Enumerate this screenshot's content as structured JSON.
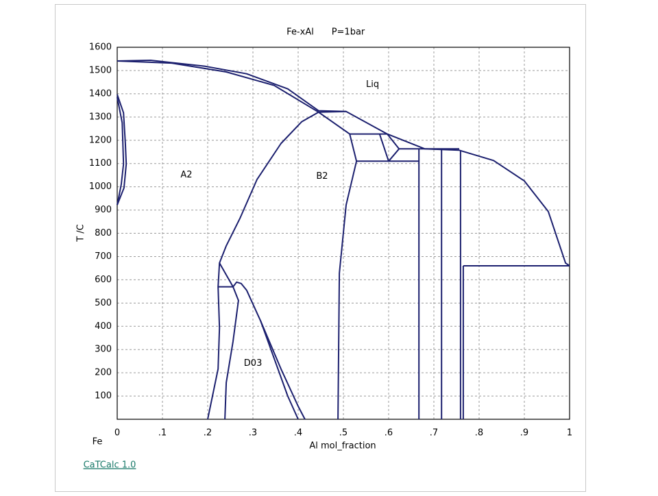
{
  "chart_data": {
    "type": "line",
    "title": "Fe-xAl",
    "subtitle": "P=1bar",
    "x_label": "Al mol_fraction",
    "y_label": "T /C",
    "origin_label": "Fe",
    "annotations": [
      {
        "text": "Liq",
        "x": 0.55,
        "y": 1440
      },
      {
        "text": "A2",
        "x": 0.14,
        "y": 1050
      },
      {
        "text": "B2",
        "x": 0.44,
        "y": 1045
      },
      {
        "text": "D03",
        "x": 0.28,
        "y": 240
      }
    ],
    "footer_link": "CaTCalc 1.0",
    "xlim": [
      0,
      1
    ],
    "ylim": [
      0,
      1600
    ],
    "xticks": [
      0,
      {
        "value": 0.1,
        "label": ".1"
      },
      {
        "value": 0.2,
        "label": ".2"
      },
      {
        "value": 0.3,
        "label": ".3"
      },
      {
        "value": 0.4,
        "label": ".4"
      },
      {
        "value": 0.5,
        "label": ".5"
      },
      {
        "value": 0.6,
        "label": ".6"
      },
      {
        "value": 0.7,
        "label": ".7"
      },
      {
        "value": 0.8,
        "label": ".8"
      },
      {
        "value": 0.9,
        "label": ".9"
      },
      1
    ],
    "yticks": [
      100,
      200,
      300,
      400,
      500,
      600,
      700,
      800,
      900,
      1000,
      1100,
      1200,
      1300,
      1400,
      1500,
      1600
    ],
    "grid": true,
    "color": "#1b1f6e",
    "series": [
      {
        "x": [
          0,
          0.074,
          0.195,
          0.286,
          0.377,
          0.445,
          0.506,
          0.597,
          0.68,
          0.756,
          0.832,
          0.9,
          0.953,
          0.991,
          1
        ],
        "y": [
          1541,
          1544,
          1518,
          1486,
          1421,
          1327,
          1324,
          1227,
          1163,
          1157,
          1113,
          1025,
          893,
          672,
          660
        ]
      },
      {
        "x": [
          0,
          0.12,
          0.241,
          0.347,
          0.445,
          0.506
        ],
        "y": [
          1541,
          1532,
          1494,
          1436,
          1321,
          1324
        ]
      },
      {
        "x": [
          0.445,
          0.408,
          0.362,
          0.309,
          0.271,
          0.241,
          0.226,
          0.223,
          0.226,
          0.223,
          0.2
        ],
        "y": [
          1321,
          1280,
          1186,
          1031,
          863,
          746,
          672,
          570,
          393,
          217,
          0
        ]
      },
      {
        "x": [
          0.445,
          0.514,
          0.529,
          0.506,
          0.491,
          0.488
        ],
        "y": [
          1321,
          1227,
          1110,
          922,
          628,
          0
        ]
      },
      {
        "x": [
          0.514,
          0.597
        ],
        "y": [
          1227,
          1227
        ]
      },
      {
        "x": [
          0.529,
          0.667
        ],
        "y": [
          1110,
          1110
        ]
      },
      {
        "x": [
          0.58,
          0.6,
          0.623,
          0.756
        ],
        "y": [
          1227,
          1110,
          1163,
          1163
        ]
      },
      {
        "x": [
          0.597,
          0.623
        ],
        "y": [
          1227,
          1163
        ]
      },
      {
        "x": [
          0.667,
          0.667
        ],
        "y": [
          1163,
          0
        ]
      },
      {
        "x": [
          0.717,
          0.717
        ],
        "y": [
          1163,
          0
        ]
      },
      {
        "x": [
          0.759,
          0.759
        ],
        "y": [
          1157,
          0
        ]
      },
      {
        "x": [
          0.765,
          0.765
        ],
        "y": [
          660,
          0
        ]
      },
      {
        "x": [
          0.765,
          1
        ],
        "y": [
          660,
          660
        ]
      },
      {
        "x": [
          0,
          0.014,
          0.018,
          0.02,
          0.015,
          0
        ],
        "y": [
          1397,
          1318,
          1186,
          1098,
          995,
          922
        ]
      },
      {
        "x": [
          0,
          0.011,
          0.014,
          0.009,
          0
        ],
        "y": [
          1385,
          1275,
          1098,
          1010,
          922
        ]
      },
      {
        "x": [
          0.226,
          0.256
        ],
        "y": [
          672,
          570
        ]
      },
      {
        "x": [
          0.223,
          0.256,
          0.264,
          0.274,
          0.286,
          0.317,
          0.362,
          0.4,
          0.415
        ],
        "y": [
          570,
          570,
          590,
          584,
          555,
          423,
          217,
          56,
          0
        ]
      },
      {
        "x": [
          0.256,
          0.268,
          0.256,
          0.241,
          0.238
        ],
        "y": [
          570,
          511,
          335,
          158,
          0
        ]
      },
      {
        "x": [
          0.317,
          0.377,
          0.4
        ],
        "y": [
          423,
          100,
          0
        ]
      }
    ]
  }
}
